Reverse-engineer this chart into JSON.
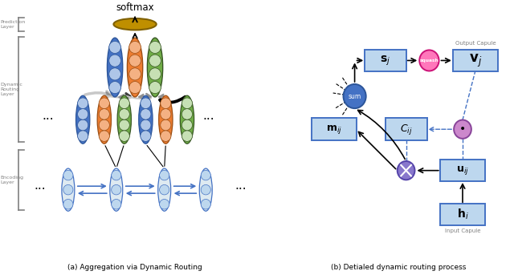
{
  "fig_width": 6.4,
  "fig_height": 3.43,
  "dpi": 100,
  "bg_color": "#ffffff",
  "caption_a": "(a) Aggregation via Dynamic Routing",
  "caption_b": "(b) Detialed dynamic routing process",
  "softmax_label": "softmax",
  "prediction_layer_label": "Prediction\nLayer",
  "dynamic_routing_layer_label": "Dynamic\nRouting\nLayer",
  "encoding_layer_label": "Encoding\nLayer",
  "output_capule_label": "Output Capule",
  "input_capule_label": "Input Capule",
  "blue_face": "#4472C4",
  "blue_light": "#AEC6E8",
  "blue_edge": "#2c5599",
  "orange_face": "#ED7D31",
  "orange_light": "#F4B183",
  "orange_edge": "#9C4E12",
  "green_face": "#70AD47",
  "green_light": "#C6E0B4",
  "green_edge": "#375623",
  "gold_face": "#BF8F00",
  "gold_edge": "#7F6000",
  "enc_face": "#DEEAF1",
  "enc_edge": "#4472C4",
  "enc_circle": "#BDD7EE",
  "box_face": "#BDD7EE",
  "box_edge": "#4472C4",
  "pink_face": "#FF77BB",
  "pink_edge": "#CC1177",
  "sum_face": "#4472C4",
  "sum_edge": "#2c5599",
  "dot_face": "#CC88CC",
  "dot_edge": "#884499",
  "cross_face": "#8877CC",
  "cross_edge": "#5544AA",
  "arrow_gray1": "#C8C8C8",
  "arrow_gray2": "#909090",
  "arrow_dark": "#404040",
  "arrow_black": "#000000"
}
